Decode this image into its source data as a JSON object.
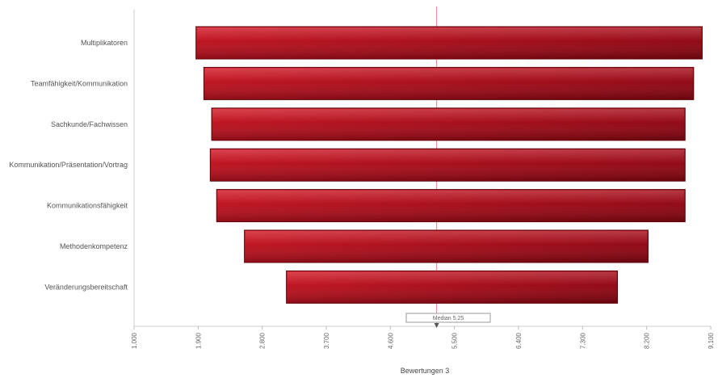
{
  "chart_data": {
    "type": "bar",
    "orientation": "horizontal",
    "style": "centered-funnel",
    "categories": [
      "Multiplikatoren",
      "Teamfähigkeit/Kommunikation",
      "Sachkunde/Fachwissen",
      "Kommunikation/Präsentation/Vortrag",
      "Kommunikationsfähigkeit",
      "Methodenkompetenz",
      "Veränderungsbereitschaft"
    ],
    "series": [
      {
        "name": "",
        "ranges": [
          [
            1.87,
            8.98
          ],
          [
            1.98,
            8.86
          ],
          [
            2.09,
            8.74
          ],
          [
            2.07,
            8.74
          ],
          [
            2.16,
            8.74
          ],
          [
            2.55,
            8.22
          ],
          [
            3.14,
            7.79
          ]
        ]
      }
    ],
    "x_ticks": [
      "1.000",
      "1.900",
      "2.800",
      "3.700",
      "4.600",
      "5.500",
      "6.400",
      "7.300",
      "8.200",
      "9.100"
    ],
    "xlim": [
      1,
      9.1
    ],
    "median_value": 5.25,
    "marker_label": "Median 5.25",
    "xlabel": "Bewertungen 3",
    "ylabel": "",
    "grid": false,
    "colors": {
      "bar_light": "#d31a28",
      "bar_dark": "#7a0510",
      "median_line": "#e08890",
      "axis": "#cccccc"
    }
  }
}
